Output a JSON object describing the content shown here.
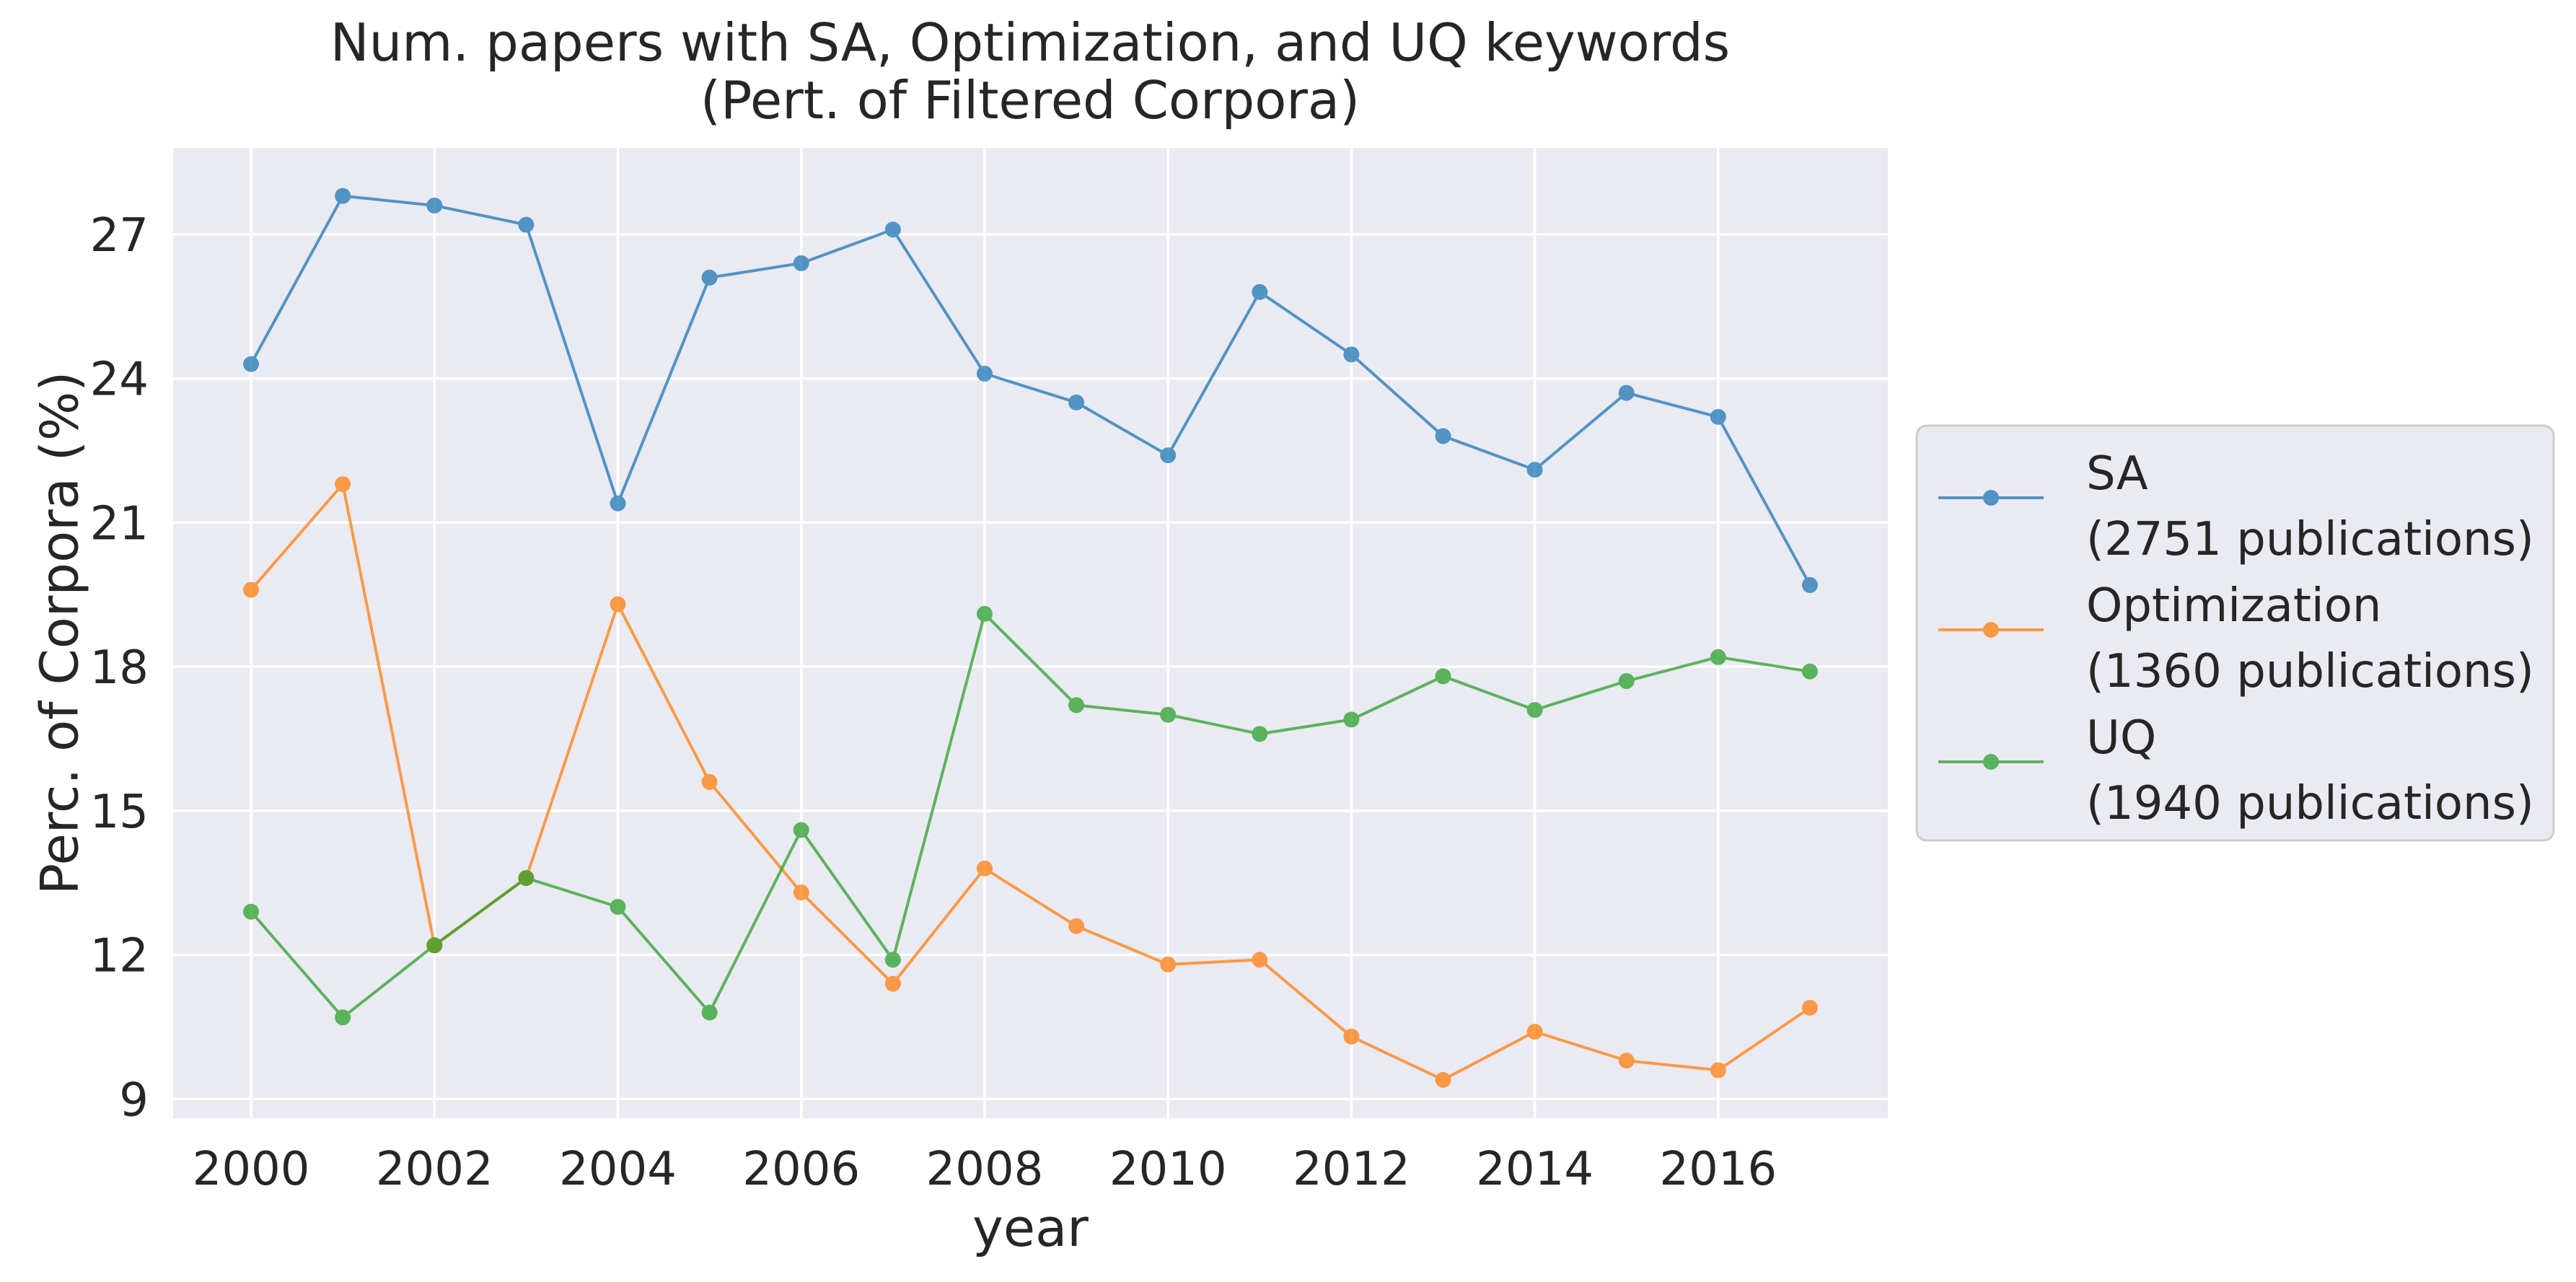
{
  "chart_data": {
    "type": "line",
    "title": "Num. papers with SA, Optimization, and UQ keywords\n(Pert. of Filtered Corpora)",
    "xlabel": "year",
    "ylabel": "Perc. of Corpora (%)",
    "x": [
      2000,
      2001,
      2002,
      2003,
      2004,
      2005,
      2006,
      2007,
      2008,
      2009,
      2010,
      2011,
      2012,
      2013,
      2014,
      2015,
      2016,
      2017
    ],
    "xticks": [
      2000,
      2002,
      2004,
      2006,
      2008,
      2010,
      2012,
      2014,
      2016
    ],
    "yticks": [
      9,
      12,
      15,
      18,
      21,
      24,
      27
    ],
    "xlim": [
      1999.15,
      2017.85
    ],
    "ylim": [
      8.6,
      28.8
    ],
    "grid": true,
    "legend_position": "center-right, outside",
    "background": "#eaeaf2",
    "series": [
      {
        "name": "SA\n(2751 publications)",
        "color": "#1f77b4",
        "values": [
          24.3,
          27.8,
          27.6,
          27.2,
          21.4,
          26.1,
          26.4,
          27.1,
          24.1,
          23.5,
          22.4,
          25.8,
          24.5,
          22.8,
          22.1,
          23.7,
          23.2,
          19.7
        ]
      },
      {
        "name": "Optimization\n(1360 publications)",
        "color": "#ff7f0e",
        "values": [
          19.6,
          21.8,
          12.2,
          13.6,
          19.3,
          15.6,
          13.3,
          11.4,
          13.8,
          12.6,
          11.8,
          11.9,
          10.3,
          9.4,
          10.4,
          9.8,
          9.6,
          10.9
        ]
      },
      {
        "name": "UQ\n(1940 publications)",
        "color": "#2ca02c",
        "values": [
          12.9,
          10.7,
          12.2,
          13.6,
          13.0,
          10.8,
          14.6,
          11.9,
          19.1,
          17.2,
          17.0,
          16.6,
          16.9,
          17.8,
          17.1,
          17.7,
          18.2,
          17.9
        ]
      }
    ]
  }
}
